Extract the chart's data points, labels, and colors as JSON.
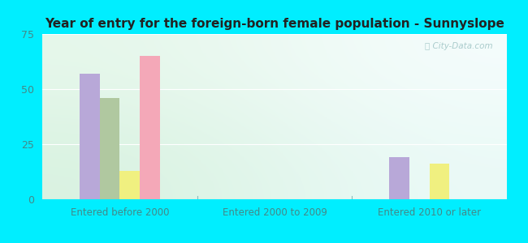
{
  "title": "Year of entry for the foreign-born female population - Sunnyslope",
  "categories": [
    "Entered before 2000",
    "Entered 2000 to 2009",
    "Entered 2010 or later"
  ],
  "series": {
    "Latin America": [
      57,
      0,
      19
    ],
    "Mexico": [
      46,
      0,
      0
    ],
    "South America": [
      13,
      0,
      16
    ],
    "Other": [
      65,
      0,
      0
    ]
  },
  "colors": {
    "Latin America": "#b8a8d8",
    "Mexico": "#b0c8a0",
    "South America": "#f0f080",
    "Other": "#f4a8b8"
  },
  "ylim": [
    0,
    75
  ],
  "yticks": [
    0,
    25,
    50,
    75
  ],
  "background_outer": "#00eeff",
  "watermark": "City-Data.com",
  "bar_width": 0.13,
  "figsize": [
    6.5,
    3.0
  ],
  "dpi": 100
}
